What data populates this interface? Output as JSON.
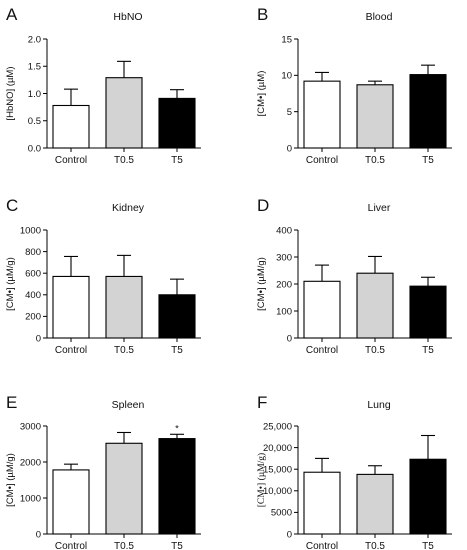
{
  "colors": {
    "Control": "#ffffff",
    "T0.5": "#d3d3d3",
    "T5": "#000000"
  },
  "chart_data": [
    {
      "panel": "A",
      "type": "bar",
      "title": "HbNO",
      "ylabel": "[HbNO] (µM)",
      "categories": [
        "Control",
        "T0.5",
        "T5"
      ],
      "values": [
        0.78,
        1.29,
        0.91
      ],
      "errors": [
        0.3,
        0.3,
        0.16
      ],
      "ylim": [
        0,
        2.0
      ],
      "ticks": [
        0,
        0.5,
        1.0,
        1.5,
        2.0
      ],
      "tick_labels": [
        "0.0",
        "0.5",
        "1.0",
        "1.5",
        "2.0"
      ],
      "annotations": []
    },
    {
      "panel": "B",
      "type": "bar",
      "title": "Blood",
      "ylabel": "[CM•] (µM)",
      "categories": [
        "Control",
        "T0.5",
        "T5"
      ],
      "values": [
        9.2,
        8.7,
        10.1
      ],
      "errors": [
        1.2,
        0.5,
        1.3
      ],
      "ylim": [
        0,
        15
      ],
      "ticks": [
        0,
        5,
        10,
        15
      ],
      "tick_labels": [
        "0",
        "5",
        "10",
        "15"
      ],
      "annotations": []
    },
    {
      "panel": "C",
      "type": "bar",
      "title": "Kidney",
      "ylabel": "[CM•] (µM/g)",
      "categories": [
        "Control",
        "T0.5",
        "T5"
      ],
      "values": [
        570,
        570,
        400
      ],
      "errors": [
        185,
        195,
        145
      ],
      "ylim": [
        0,
        1000
      ],
      "ticks": [
        0,
        200,
        400,
        600,
        800,
        1000
      ],
      "tick_labels": [
        "0",
        "200",
        "400",
        "600",
        "800",
        "1000"
      ],
      "annotations": []
    },
    {
      "panel": "D",
      "type": "bar",
      "title": "Liver",
      "ylabel": "[CM•] (µM/g)",
      "categories": [
        "Control",
        "T0.5",
        "T5"
      ],
      "values": [
        210,
        240,
        192
      ],
      "errors": [
        60,
        62,
        33
      ],
      "ylim": [
        0,
        400
      ],
      "ticks": [
        0,
        100,
        200,
        300,
        400
      ],
      "tick_labels": [
        "0",
        "100",
        "200",
        "300",
        "400"
      ],
      "annotations": []
    },
    {
      "panel": "E",
      "type": "bar",
      "title": "Spleen",
      "ylabel": "[CM•] (µM/g)",
      "categories": [
        "Control",
        "T0.5",
        "T5"
      ],
      "values": [
        1780,
        2520,
        2650
      ],
      "errors": [
        160,
        300,
        120
      ],
      "ylim": [
        0,
        3000
      ],
      "ticks": [
        0,
        1000,
        2000,
        3000
      ],
      "tick_labels": [
        "0",
        "1000",
        "2000",
        "3000"
      ],
      "annotations": [
        {
          "category": "T5",
          "text": "*"
        }
      ]
    },
    {
      "panel": "F",
      "type": "bar",
      "title": "Lung",
      "ylabel": "[CM•] (µM/g)",
      "categories": [
        "Control",
        "T0.5",
        "T5"
      ],
      "values": [
        14300,
        13800,
        17300
      ],
      "errors": [
        3200,
        2000,
        5500
      ],
      "ylim": [
        0,
        25000
      ],
      "ticks": [
        0,
        5000,
        10000,
        15000,
        20000,
        25000
      ],
      "tick_labels": [
        "0",
        "5000",
        "10,000",
        "15,000",
        "20,000",
        "25,000"
      ],
      "annotations": []
    }
  ]
}
